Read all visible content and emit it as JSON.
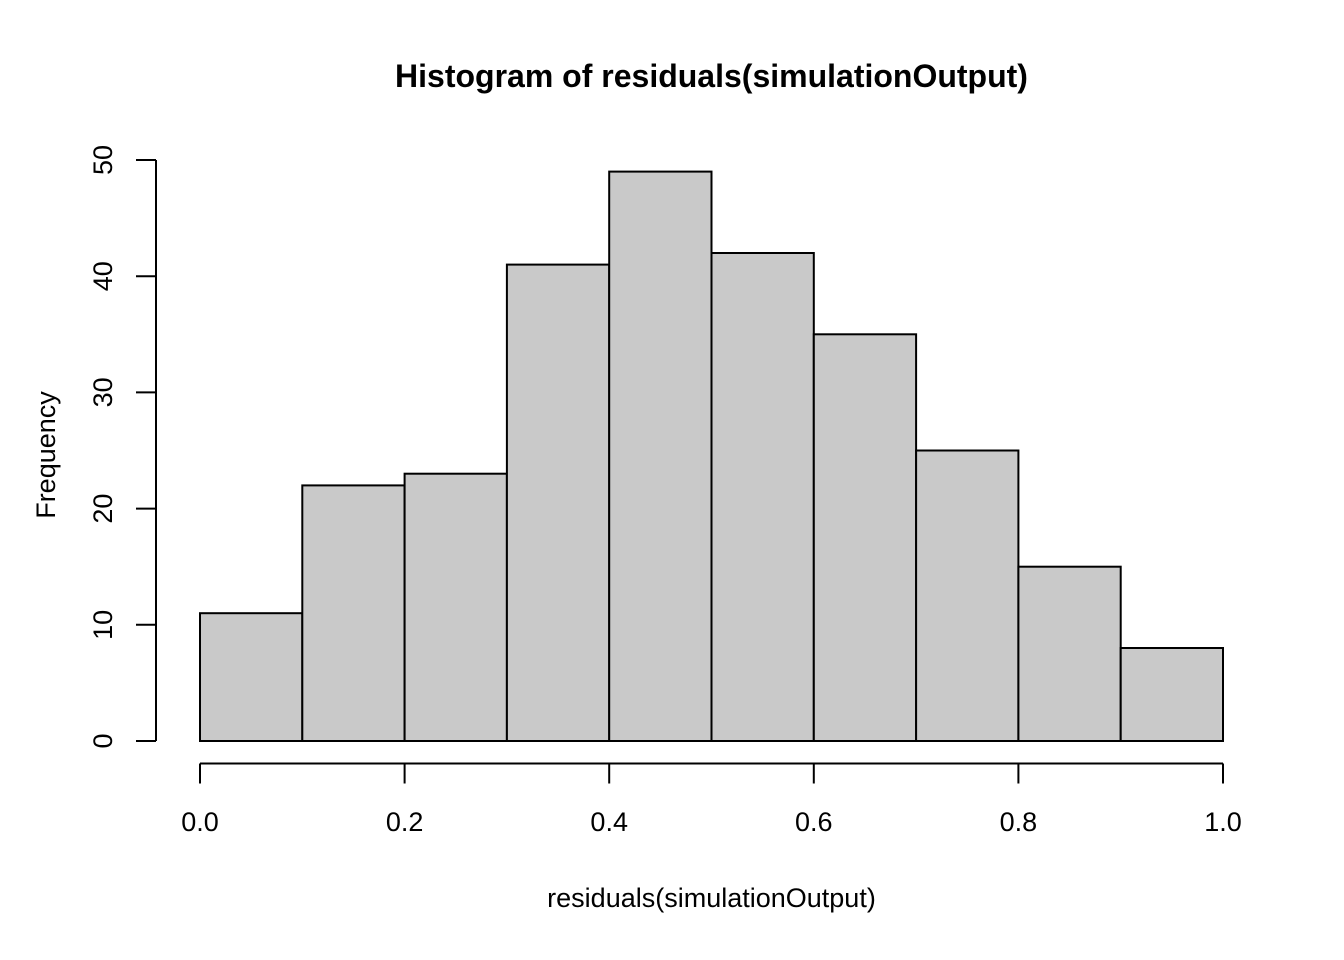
{
  "figure": {
    "background_color": "#FFFFFF",
    "text_color": "#000000"
  },
  "chart_data": {
    "type": "bar",
    "chart_kind": "histogram",
    "title": "Histogram of residuals(simulationOutput)",
    "xlabel": "residuals(simulationOutput)",
    "ylabel": "Frequency",
    "categories": [
      "0.0-0.1",
      "0.1-0.2",
      "0.2-0.3",
      "0.3-0.4",
      "0.4-0.5",
      "0.5-0.6",
      "0.6-0.7",
      "0.7-0.8",
      "0.8-0.9",
      "0.9-1.0"
    ],
    "bin_edges": [
      0.0,
      0.1,
      0.2,
      0.3,
      0.4,
      0.5,
      0.6,
      0.7,
      0.8,
      0.9,
      1.0
    ],
    "values": [
      11,
      22,
      23,
      41,
      49,
      42,
      35,
      25,
      15,
      8
    ],
    "xlim": [
      0.0,
      1.0
    ],
    "ylim": [
      0,
      50
    ],
    "x_ticks": [
      0.0,
      0.2,
      0.4,
      0.6,
      0.8,
      1.0
    ],
    "x_tick_labels": [
      "0.0",
      "0.2",
      "0.4",
      "0.6",
      "0.8",
      "1.0"
    ],
    "y_ticks": [
      0,
      10,
      20,
      30,
      40,
      50
    ],
    "y_tick_labels": [
      "0",
      "10",
      "20",
      "30",
      "40",
      "50"
    ],
    "grid": false,
    "legend": null,
    "bar_fill": "#C9C9C9",
    "bar_stroke": "#000000",
    "axis_color": "#000000"
  }
}
